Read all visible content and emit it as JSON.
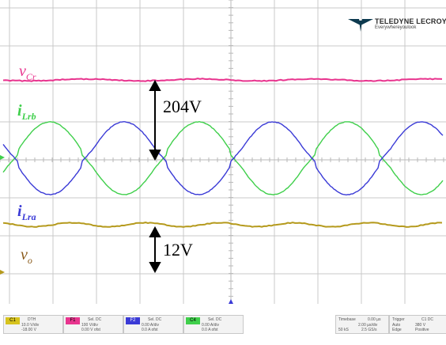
{
  "brand": {
    "name": "TELEDYNE LECROY",
    "tagline": "Everywhereyoulook"
  },
  "colors": {
    "vcr": "#e8348e",
    "ilrb": "#3fcf4b",
    "ilra": "#3a3ad6",
    "vo": "#b59a1d",
    "grid": "#c8c8c8",
    "c1_badge": "#d7c31d",
    "f1_badge": "#e8348e",
    "f2_badge": "#3a3ad6",
    "c4_badge": "#3fcf4b"
  },
  "labels": {
    "vcr": {
      "main": "v",
      "sub": "Cr"
    },
    "ilrb": {
      "main": "i",
      "sub": "Lrb"
    },
    "ilra": {
      "main": "i",
      "sub": "Lra"
    },
    "vo": {
      "main": "v",
      "sub": "o"
    }
  },
  "annotations": {
    "upper": "204V",
    "lower": "12V"
  },
  "channels": [
    {
      "badge": "C1",
      "v1": "DTH",
      "v2": "10.0 V/div",
      "v3": "-18.00 V"
    },
    {
      "badge": "F1",
      "v1": "Sel. DC",
      "v2": "100 V/div",
      "v3": "0.00 V ofst"
    },
    {
      "badge": "F2",
      "v1": "Sel. DC",
      "v2": "0.00 A/div",
      "v3": "0.0 A ofst"
    },
    {
      "badge": "C4",
      "v1": "Sel. DC",
      "v2": "0.00 A/div",
      "v3": "0.0 A ofst"
    }
  ],
  "timebase": {
    "title": "Timebase",
    "value": "0.00 µs",
    "row2": "2.00 µs/div",
    "row3a": "50 kS",
    "row3b": "2.5 GS/s"
  },
  "trigger": {
    "title": "Trigger",
    "value": "C1 DC",
    "row2": "Auto",
    "row2b": "380 V",
    "row3": "Edge",
    "row3b": "Positive"
  }
}
